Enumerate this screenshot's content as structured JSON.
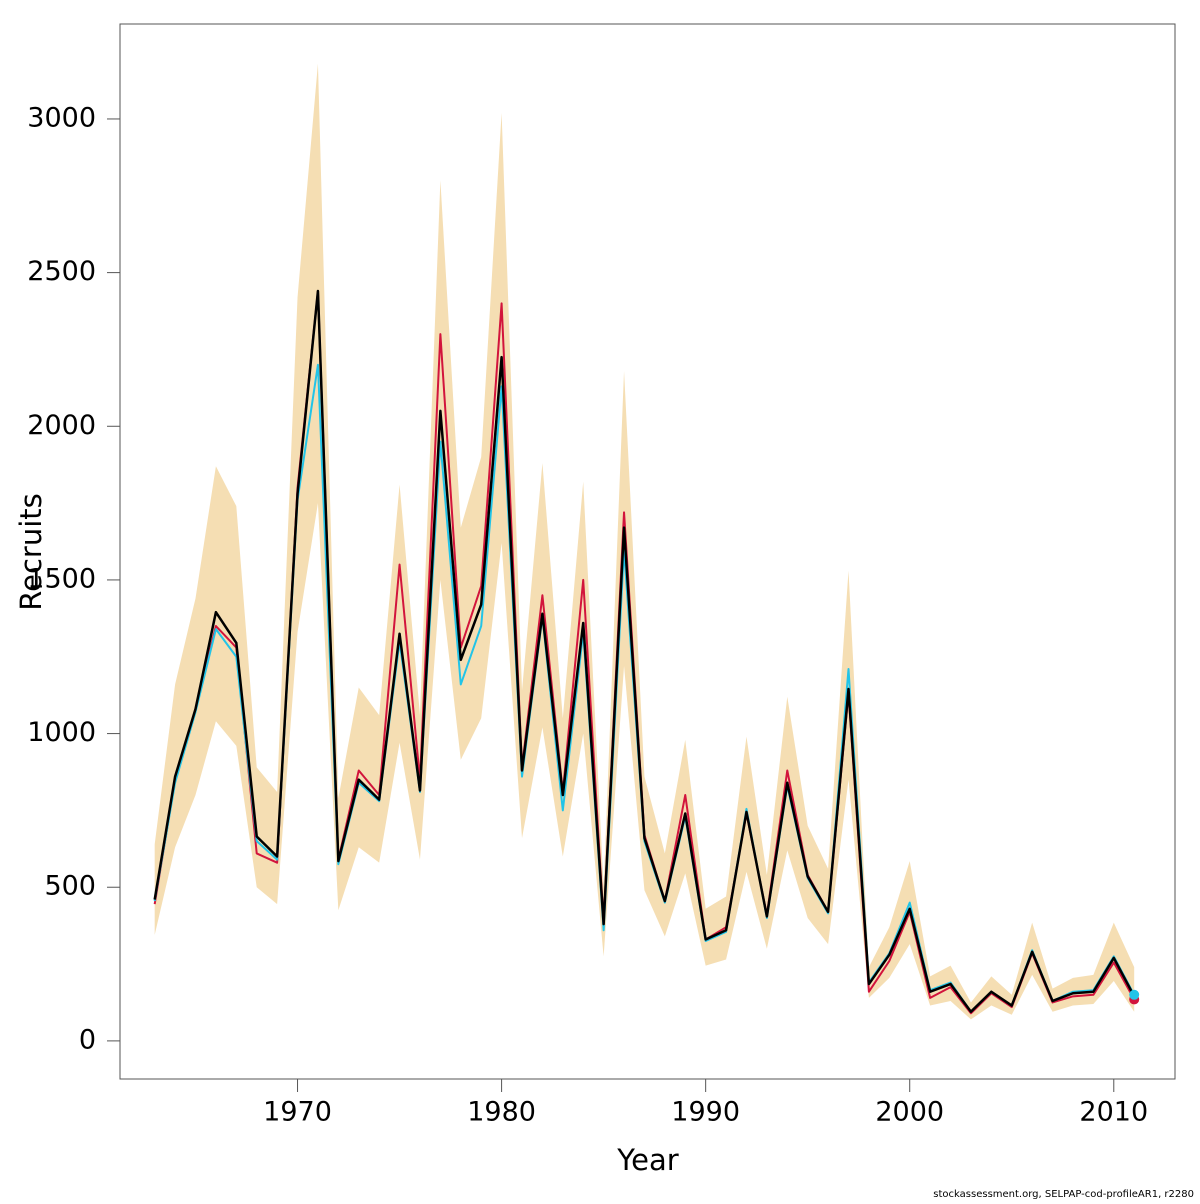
{
  "chart_data": {
    "type": "line",
    "xlabel": "Year",
    "ylabel": "Recruits",
    "caption": "stockassessment.org, SELPAP-cod-profileAR1, r2280",
    "x": [
      1963,
      1964,
      1965,
      1966,
      1967,
      1968,
      1969,
      1970,
      1971,
      1972,
      1973,
      1974,
      1975,
      1976,
      1977,
      1978,
      1979,
      1980,
      1981,
      1982,
      1983,
      1984,
      1985,
      1986,
      1987,
      1988,
      1989,
      1990,
      1991,
      1992,
      1993,
      1994,
      1995,
      1996,
      1997,
      1998,
      1999,
      2000,
      2001,
      2002,
      2003,
      2004,
      2005,
      2006,
      2007,
      2008,
      2009,
      2010,
      2011
    ],
    "band": {
      "color": "#f5deb3",
      "upper": [
        640,
        1160,
        1440,
        1870,
        1740,
        890,
        810,
        2420,
        3180,
        790,
        1150,
        1060,
        1810,
        1060,
        2800,
        1670,
        1900,
        3020,
        1140,
        1880,
        1050,
        1820,
        500,
        2180,
        860,
        610,
        980,
        430,
        470,
        990,
        540,
        1120,
        700,
        560,
        1530,
        240,
        370,
        585,
        210,
        245,
        125,
        210,
        150,
        385,
        170,
        205,
        215,
        385,
        240
      ],
      "lower": [
        345,
        630,
        800,
        1040,
        960,
        500,
        445,
        1330,
        1750,
        425,
        630,
        580,
        970,
        590,
        1500,
        915,
        1050,
        1620,
        660,
        1020,
        600,
        1000,
        275,
        1220,
        490,
        340,
        545,
        245,
        265,
        550,
        300,
        620,
        400,
        315,
        850,
        140,
        205,
        315,
        115,
        130,
        70,
        115,
        85,
        215,
        95,
        115,
        120,
        195,
        95
      ]
    },
    "series": [
      {
        "color": "#d2143c",
        "values": [
          445,
          850,
          1075,
          1350,
          1280,
          610,
          580,
          1800,
          2440,
          590,
          880,
          800,
          1550,
          850,
          2300,
          1280,
          1480,
          2400,
          890,
          1450,
          810,
          1500,
          385,
          1720,
          670,
          455,
          800,
          330,
          370,
          740,
          410,
          880,
          540,
          420,
          1130,
          160,
          260,
          420,
          140,
          175,
          90,
          155,
          110,
          285,
          125,
          145,
          150,
          255,
          135
        ]
      },
      {
        "color": "#22c4e8",
        "values": [
          455,
          840,
          1070,
          1340,
          1250,
          650,
          590,
          1760,
          2200,
          575,
          840,
          780,
          1300,
          810,
          1950,
          1160,
          1350,
          2130,
          860,
          1380,
          750,
          1330,
          360,
          1600,
          650,
          450,
          730,
          325,
          355,
          755,
          400,
          830,
          530,
          415,
          1210,
          190,
          285,
          450,
          165,
          190,
          95,
          160,
          115,
          295,
          130,
          160,
          165,
          275,
          150
        ]
      },
      {
        "color": "#000000",
        "values": [
          460,
          860,
          1080,
          1395,
          1295,
          665,
          600,
          1780,
          2440,
          585,
          850,
          785,
          1325,
          815,
          2050,
          1240,
          1420,
          2225,
          880,
          1390,
          800,
          1360,
          380,
          1670,
          660,
          455,
          740,
          330,
          360,
          745,
          405,
          840,
          535,
          420,
          1145,
          185,
          280,
          430,
          160,
          185,
          95,
          160,
          115,
          290,
          130,
          155,
          160,
          270,
          145
        ]
      }
    ],
    "xlim": [
      1961.3,
      2013.0
    ],
    "ylim": [
      -124,
      3309
    ],
    "xticks": [
      1970,
      1980,
      1990,
      2000,
      2010
    ],
    "yticks": [
      0,
      500,
      1000,
      1500,
      2000,
      2500,
      3000
    ]
  }
}
